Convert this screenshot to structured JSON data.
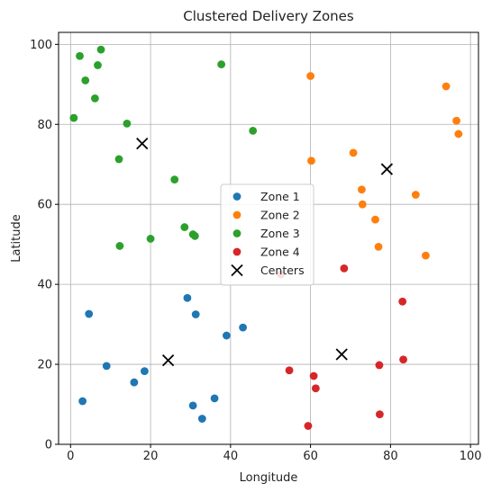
{
  "chart_data": {
    "type": "scatter",
    "title": "Clustered Delivery Zones",
    "xlabel": "Longitude",
    "ylabel": "Latitude",
    "xlim": [
      -3,
      102
    ],
    "ylim": [
      0,
      103
    ],
    "xticks": [
      0,
      20,
      40,
      60,
      80,
      100
    ],
    "yticks": [
      0,
      20,
      40,
      60,
      80,
      100
    ],
    "grid": true,
    "legend_position": "center",
    "series": [
      {
        "name": "Zone 1",
        "color": "#1f77b4",
        "marker": "circle",
        "points": [
          [
            3,
            10.8
          ],
          [
            4.6,
            32.6
          ],
          [
            9,
            19.6
          ],
          [
            15.9,
            15.5
          ],
          [
            18.5,
            18.3
          ],
          [
            29.2,
            36.6
          ],
          [
            30.6,
            9.7
          ],
          [
            31.3,
            32.5
          ],
          [
            32.9,
            6.4
          ],
          [
            36,
            11.5
          ],
          [
            39,
            27.2
          ],
          [
            43.1,
            29.2
          ]
        ]
      },
      {
        "name": "Zone 2",
        "color": "#ff7f0e",
        "marker": "circle",
        "points": [
          [
            60,
            92.1
          ],
          [
            60.2,
            70.9
          ],
          [
            70.7,
            72.9
          ],
          [
            72.8,
            63.7
          ],
          [
            73,
            60
          ],
          [
            76.2,
            56.2
          ],
          [
            77,
            49.4
          ],
          [
            86.3,
            62.4
          ],
          [
            88.8,
            47.2
          ],
          [
            93.9,
            89.5
          ],
          [
            96.5,
            80.9
          ],
          [
            97,
            77.6
          ]
        ]
      },
      {
        "name": "Zone 3",
        "color": "#2ca02c",
        "marker": "circle",
        "points": [
          [
            0.8,
            81.6
          ],
          [
            2.3,
            97.1
          ],
          [
            3.7,
            91.0
          ],
          [
            6.1,
            86.5
          ],
          [
            6.8,
            94.8
          ],
          [
            7.6,
            98.7
          ],
          [
            12.1,
            71.3
          ],
          [
            12.3,
            49.6
          ],
          [
            14.1,
            80.2
          ],
          [
            20,
            51.4
          ],
          [
            26,
            66.2
          ],
          [
            28.5,
            54.3
          ],
          [
            30.6,
            52.5
          ],
          [
            31.1,
            52.1
          ],
          [
            37.7,
            95.0
          ],
          [
            45.6,
            78.4
          ]
        ]
      },
      {
        "name": "Zone 4",
        "color": "#d62728",
        "marker": "circle",
        "points": [
          [
            52.6,
            42.5
          ],
          [
            54.7,
            18.5
          ],
          [
            59.4,
            4.6
          ],
          [
            60.8,
            17.1
          ],
          [
            61.3,
            14
          ],
          [
            68.4,
            44
          ],
          [
            77.2,
            19.8
          ],
          [
            77.3,
            7.5
          ],
          [
            83,
            35.7
          ],
          [
            83.2,
            21.2
          ]
        ]
      },
      {
        "name": "Centers",
        "color": "#000000",
        "marker": "x",
        "points": [
          [
            17.9,
            75.2
          ],
          [
            24.4,
            21
          ],
          [
            67.8,
            22.5
          ],
          [
            79.1,
            68.8
          ]
        ]
      }
    ]
  }
}
